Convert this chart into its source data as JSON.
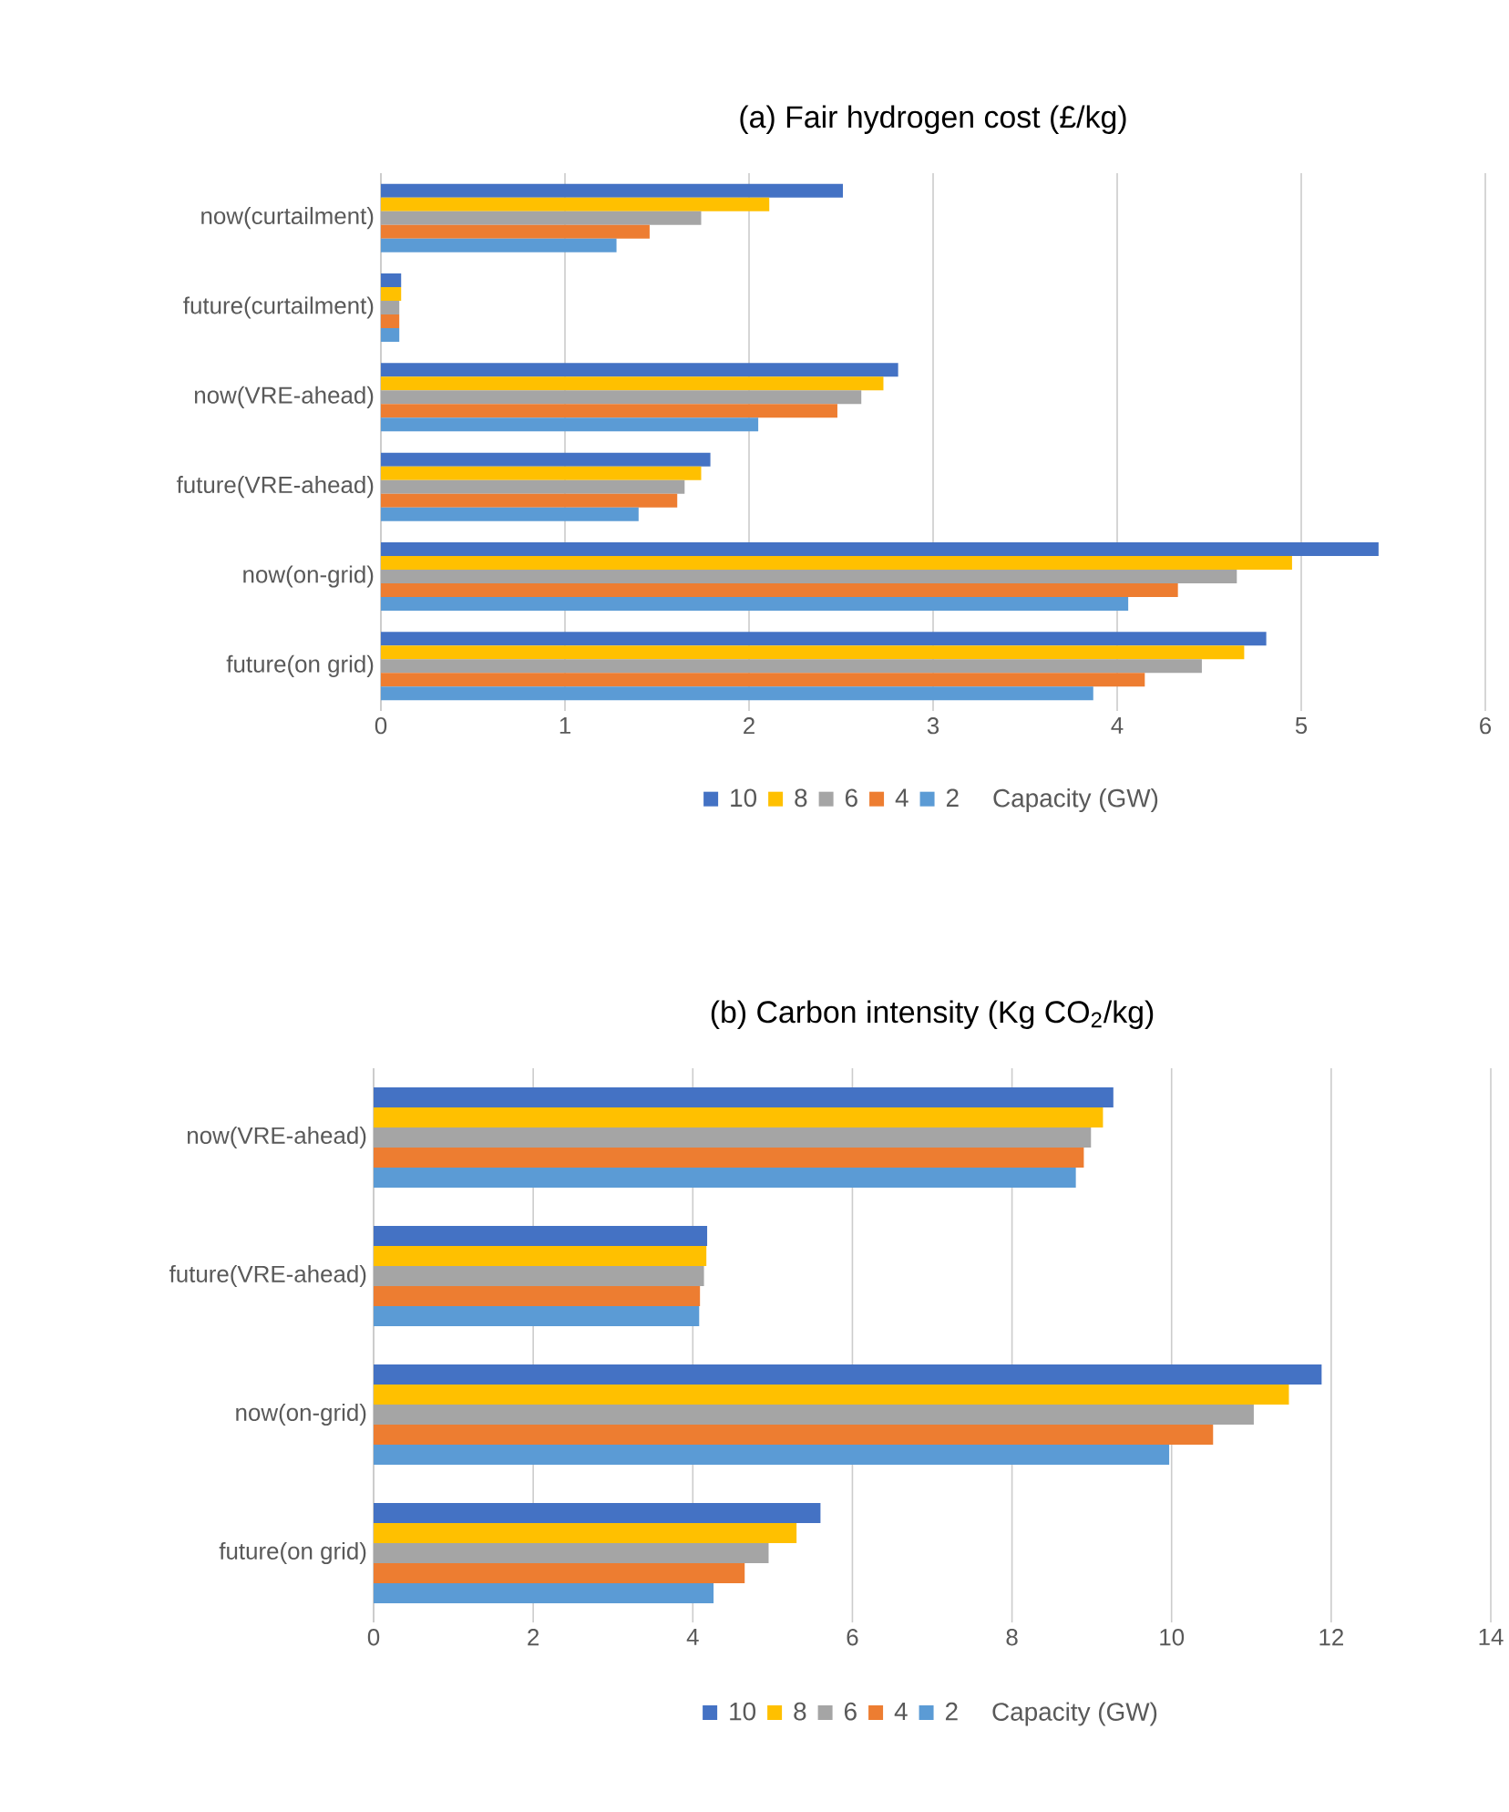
{
  "chart_data": [
    {
      "type": "bar",
      "orientation": "horizontal",
      "title": "(a) Fair hydrogen cost (£/kg)",
      "legend_title": "Capacity (GW)",
      "categories": [
        "now(curtailment)",
        "future(curtailment)",
        "now(VRE-ahead)",
        "future(VRE-ahead)",
        "now(on-grid)",
        "future(on grid)"
      ],
      "series": [
        {
          "name": "10",
          "color": "#4472c4",
          "values": [
            2.51,
            0.11,
            2.81,
            1.79,
            5.42,
            4.81
          ]
        },
        {
          "name": "8",
          "color": "#ffc000",
          "values": [
            2.11,
            0.11,
            2.73,
            1.74,
            4.95,
            4.69
          ]
        },
        {
          "name": "6",
          "color": "#a5a5a5",
          "values": [
            1.74,
            0.1,
            2.61,
            1.65,
            4.65,
            4.46
          ]
        },
        {
          "name": "4",
          "color": "#ed7d31",
          "values": [
            1.46,
            0.1,
            2.48,
            1.61,
            4.33,
            4.15
          ]
        },
        {
          "name": "2",
          "color": "#5b9bd5",
          "values": [
            1.28,
            0.1,
            2.05,
            1.4,
            4.06,
            3.87
          ]
        }
      ],
      "xlim": [
        0,
        6
      ],
      "xticks": [
        0,
        1,
        2,
        3,
        4,
        5,
        6
      ],
      "grid": "x",
      "legend": "bottom"
    },
    {
      "type": "bar",
      "orientation": "horizontal",
      "title": "(b) Carbon intensity (Kg CO$_{2}$/kg)",
      "legend_title": "Capacity (GW)",
      "categories": [
        "now(VRE-ahead)",
        "future(VRE-ahead)",
        "now(on-grid)",
        "future(on grid)"
      ],
      "series": [
        {
          "name": "10",
          "color": "#4472c4",
          "values": [
            9.27,
            4.18,
            11.88,
            5.6
          ]
        },
        {
          "name": "8",
          "color": "#ffc000",
          "values": [
            9.14,
            4.17,
            11.47,
            5.3
          ]
        },
        {
          "name": "6",
          "color": "#a5a5a5",
          "values": [
            8.99,
            4.14,
            11.03,
            4.95
          ]
        },
        {
          "name": "4",
          "color": "#ed7d31",
          "values": [
            8.9,
            4.09,
            10.52,
            4.65
          ]
        },
        {
          "name": "2",
          "color": "#5b9bd5",
          "values": [
            8.8,
            4.08,
            9.97,
            4.26
          ]
        }
      ],
      "xlim": [
        0,
        14
      ],
      "xticks": [
        0,
        2,
        4,
        6,
        8,
        10,
        12,
        14
      ],
      "grid": "x",
      "legend": "bottom"
    }
  ]
}
